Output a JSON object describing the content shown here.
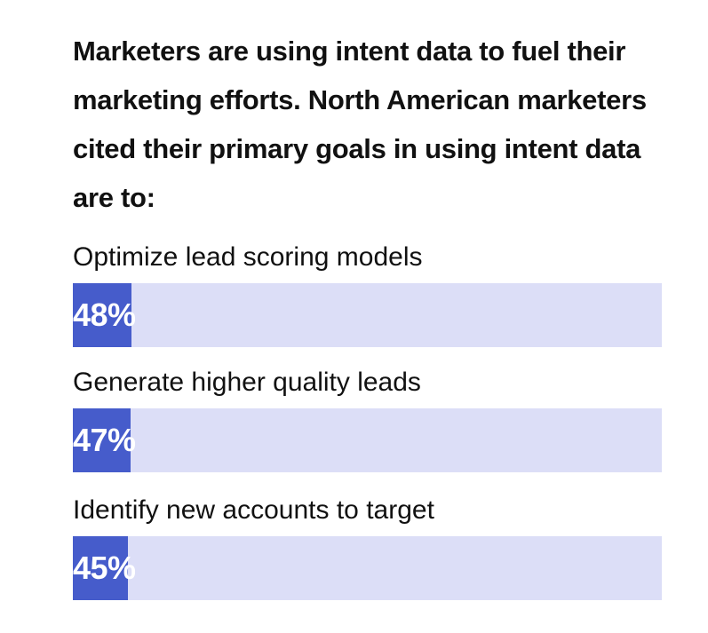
{
  "chart_data": {
    "type": "bar",
    "orientation": "horizontal",
    "title": "Marketers are using intent data to fuel their marketing efforts. North American marketers cited their primary goals in using intent data are to:",
    "categories": [
      "Optimize lead scoring models",
      "Generate higher quality leads",
      "Identify new accounts to target"
    ],
    "values": [
      48,
      47,
      45
    ],
    "value_labels": [
      "48%",
      "47%",
      "45%"
    ],
    "xlim": [
      0,
      100
    ],
    "grid": false,
    "colors": {
      "fill": "#465ccb",
      "track": "#dcdef7"
    }
  }
}
